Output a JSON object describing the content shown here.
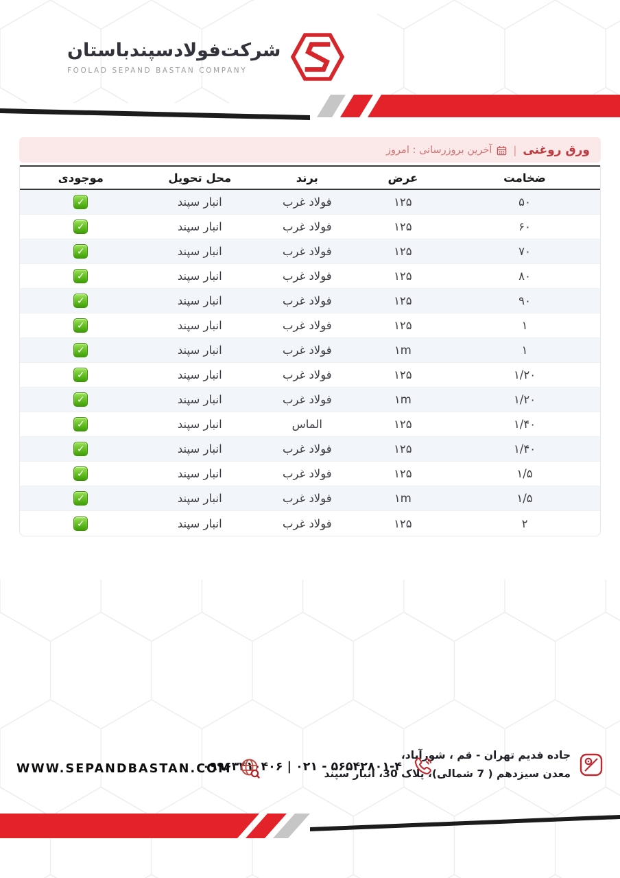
{
  "brand": {
    "company_name_fa": "شرکت‌فولادسپندباستان",
    "company_name_en": "FOOLAD SEPAND BASTAN COMPANY"
  },
  "title_bar": {
    "title": "ورق روغنی",
    "separator": "|",
    "last_update": "آخرین بروزرسانی : امروز"
  },
  "table": {
    "columns": [
      "ضخامت",
      "عرض",
      "برند",
      "محل تحویل",
      "موجودی"
    ],
    "rows": [
      {
        "thickness": "۵۰",
        "width": "۱۲۵",
        "brand": "فولاد غرب",
        "delivery": "انبار سپند",
        "in_stock": true
      },
      {
        "thickness": "۶۰",
        "width": "۱۲۵",
        "brand": "فولاد غرب",
        "delivery": "انبار سپند",
        "in_stock": true
      },
      {
        "thickness": "۷۰",
        "width": "۱۲۵",
        "brand": "فولاد غرب",
        "delivery": "انبار سپند",
        "in_stock": true
      },
      {
        "thickness": "۸۰",
        "width": "۱۲۵",
        "brand": "فولاد غرب",
        "delivery": "انبار سپند",
        "in_stock": true
      },
      {
        "thickness": "۹۰",
        "width": "۱۲۵",
        "brand": "فولاد غرب",
        "delivery": "انبار سپند",
        "in_stock": true
      },
      {
        "thickness": "۱",
        "width": "۱۲۵",
        "brand": "فولاد غرب",
        "delivery": "انبار سپند",
        "in_stock": true
      },
      {
        "thickness": "۱",
        "width": "۱m",
        "brand": "فولاد غرب",
        "delivery": "انبار سپند",
        "in_stock": true
      },
      {
        "thickness": "۱/۲۰",
        "width": "۱۲۵",
        "brand": "فولاد غرب",
        "delivery": "انبار سپند",
        "in_stock": true
      },
      {
        "thickness": "۱/۲۰",
        "width": "۱m",
        "brand": "فولاد غرب",
        "delivery": "انبار سپند",
        "in_stock": true
      },
      {
        "thickness": "۱/۴۰",
        "width": "۱۲۵",
        "brand": "الماس",
        "delivery": "انبار سپند",
        "in_stock": true
      },
      {
        "thickness": "۱/۴۰",
        "width": "۱۲۵",
        "brand": "فولاد غرب",
        "delivery": "انبار سپند",
        "in_stock": true
      },
      {
        "thickness": "۱/۵",
        "width": "۱۲۵",
        "brand": "فولاد غرب",
        "delivery": "انبار سپند",
        "in_stock": true
      },
      {
        "thickness": "۱/۵",
        "width": "۱m",
        "brand": "فولاد غرب",
        "delivery": "انبار سپند",
        "in_stock": true
      },
      {
        "thickness": "۲",
        "width": "۱۲۵",
        "brand": "فولاد غرب",
        "delivery": "انبار سپند",
        "in_stock": true
      }
    ]
  },
  "footer": {
    "website": "WWW.SEPANDBASTAN.COM",
    "phone_numbers": "۰۹۹۶۳۴۱۰۴۰۶ | ۰۲۱ - ۵۶۵۴۲۸۰۱-۴",
    "address_line1": "جاده قدیم تهران - قم ، شورآباد،",
    "address_line2": "معدن سیزدهم ( 7 شمالی)، پلاک 30، انبار سپند"
  },
  "icons": {
    "check_glyph": "✓"
  },
  "colors": {
    "brand_red": "#e32229",
    "dark_red": "#c0393f",
    "pink_bg": "#fbe9e9",
    "stock_green": "#4ca50c",
    "band_gray": "#c6c6c6"
  }
}
